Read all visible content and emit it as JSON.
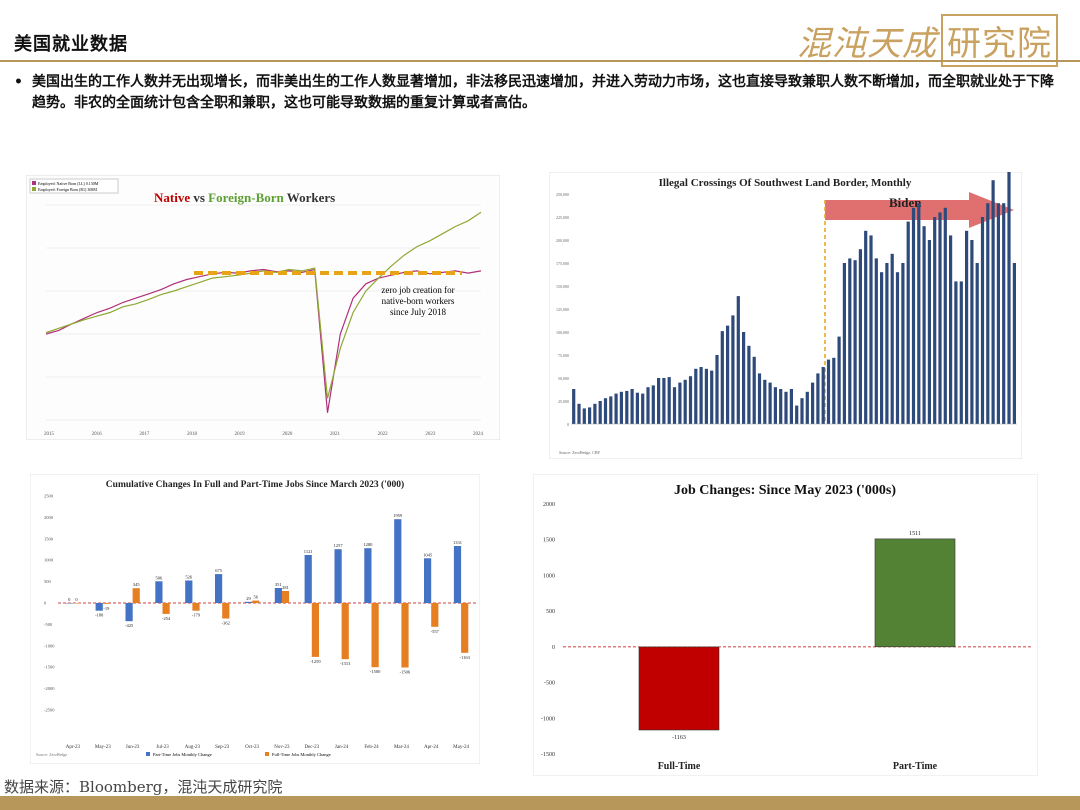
{
  "header": {
    "title": "美国就业数据",
    "brand_main": "混沌天成",
    "brand_box": "研究院"
  },
  "bullet_text": "美国出生的工作人数并无出现增长，而非美出生的工作人数显著增加，非法移民迅速增加，并进入劳动力市场，这也直接导致兼职人数不断增加，而全职就业处于下降趋势。非农的全面统计包含全职和兼职，这也可能导致数据的重复计算或者高估。",
  "source": "数据来源：Bloomberg，混沌天成研究院",
  "colors": {
    "gold": "#b8975a",
    "native": "#b0307a",
    "foreign": "#8fa832",
    "orange": "#e8a317",
    "blue": "#4472c4",
    "orange2": "#e67e22",
    "red": "#c00000",
    "green": "#548235",
    "navy": "#2e4a7a"
  },
  "chart_data": [
    {
      "type": "line",
      "title_part1": "Native",
      "title_part2": " vs ",
      "title_part3": "Foreign-Born",
      "title_part4": " Workers",
      "legend": [
        "Employed: Native Born (LL)  0.130M",
        "Employed: Foreign Born (R1)  308M"
      ],
      "series": [
        {
          "name": "Employed: Native Born (LL)",
          "values": [
            0,
            5,
            14,
            22,
            30,
            36,
            44,
            50,
            56,
            62,
            70,
            76,
            80,
            84,
            86,
            85,
            88,
            90,
            87,
            88,
            86,
            90,
            -110,
            0,
            50,
            70,
            78,
            82,
            86,
            88,
            84,
            86,
            88,
            85,
            88
          ]
        },
        {
          "name": "Employed: Foreign Born (R1)",
          "values": [
            2,
            8,
            14,
            20,
            25,
            30,
            38,
            42,
            48,
            55,
            60,
            66,
            72,
            78,
            80,
            82,
            85,
            88,
            86,
            90,
            88,
            92,
            -90,
            -20,
            30,
            60,
            78,
            95,
            110,
            122,
            130,
            140,
            150,
            158,
            170
          ]
        }
      ],
      "x_ticks": [
        "2015",
        "2016",
        "2017",
        "2018",
        "2019",
        "2020",
        "2021",
        "2022",
        "2023",
        "2024"
      ],
      "annotation": [
        "zero job creation for",
        "native-born workers",
        "since July 2018"
      ]
    },
    {
      "type": "bar",
      "title": "Illegal Crossings Of Southwest Land Border, Monthly",
      "arrow_label": "Biden",
      "source_note": "Source: ZeroHedge, CBP",
      "y_ticks": [
        "250,000",
        "225,000",
        "200,000",
        "175,000",
        "150,000",
        "125,000",
        "100,000",
        "75,000",
        "50,000",
        "25,000",
        "0"
      ],
      "values": [
        38000,
        22000,
        17000,
        18000,
        22000,
        25000,
        28000,
        30000,
        33000,
        35000,
        36000,
        38000,
        34000,
        33000,
        40000,
        42000,
        50000,
        50000,
        51000,
        40000,
        45000,
        48000,
        52000,
        60000,
        62000,
        60000,
        58000,
        75000,
        101000,
        107000,
        118000,
        139000,
        100000,
        85000,
        73000,
        55000,
        48000,
        45000,
        40000,
        38000,
        35000,
        38000,
        20000,
        28000,
        35000,
        45000,
        55000,
        62000,
        70000,
        72000,
        95000,
        175000,
        180000,
        178000,
        190000,
        210000,
        205000,
        180000,
        165000,
        175000,
        185000,
        165000,
        175000,
        220000,
        235000,
        240000,
        215000,
        200000,
        225000,
        230000,
        235000,
        205000,
        155000,
        155000,
        210000,
        200000,
        175000,
        225000,
        240000,
        265000,
        240000,
        240000,
        300000,
        175000
      ]
    },
    {
      "type": "bar",
      "title": "Cumulative Changes In Full and Part-Time Jobs Since March 2023 ('000)",
      "categories": [
        "Apr-23",
        "May-23",
        "Jun-23",
        "Jul-23",
        "Aug-23",
        "Sep-23",
        "Oct-23",
        "Nov-23",
        "Dec-23",
        "Jan-24",
        "Feb-24",
        "Mar-24",
        "Apr-24",
        "May-24"
      ],
      "series": [
        {
          "name": "Part-Time Jobs Monthly Change",
          "values": [
            0,
            -180,
            -425,
            506,
            526,
            675,
            29,
            351,
            1121,
            1257,
            1280,
            1959,
            1045,
            1331
          ],
          "labels": [
            "0",
            "-180",
            "-425",
            "506",
            "526",
            "675",
            "29",
            "351",
            "1121",
            "1257",
            "1280",
            "1959",
            "1045",
            "1331"
          ]
        },
        {
          "name": "Full-Time Jobs Monthly Change",
          "values": [
            0,
            -19,
            345,
            -254,
            -179,
            -362,
            56,
            281,
            -1259,
            -1313,
            -1500,
            -1506,
            -557,
            -1163
          ],
          "labels": [
            "0",
            "-19",
            "345",
            "-254",
            "-179",
            "-362",
            "56",
            "281",
            "-1259",
            "-1313",
            "-1500",
            "-1506",
            "-557",
            "-1163"
          ]
        }
      ],
      "y_ticks": [
        "2500",
        "2000",
        "1500",
        "1000",
        "500",
        "0",
        "-500",
        "-1000",
        "-1500",
        "-2000",
        "-2500"
      ],
      "ylim": [
        -2500,
        2500
      ],
      "source_note": "Source: ZeroHedge"
    },
    {
      "type": "bar",
      "title": "Job Changes: Since May 2023 ('000s)",
      "categories": [
        "Full-Time",
        "Part-Time"
      ],
      "values": [
        -1163,
        1511
      ],
      "value_labels": [
        "-1163",
        "1511"
      ],
      "y_ticks": [
        "2000",
        "1500",
        "1000",
        "500",
        "0",
        "-500",
        "-1000",
        "-1500"
      ],
      "ylim": [
        -1500,
        2000
      ]
    }
  ]
}
